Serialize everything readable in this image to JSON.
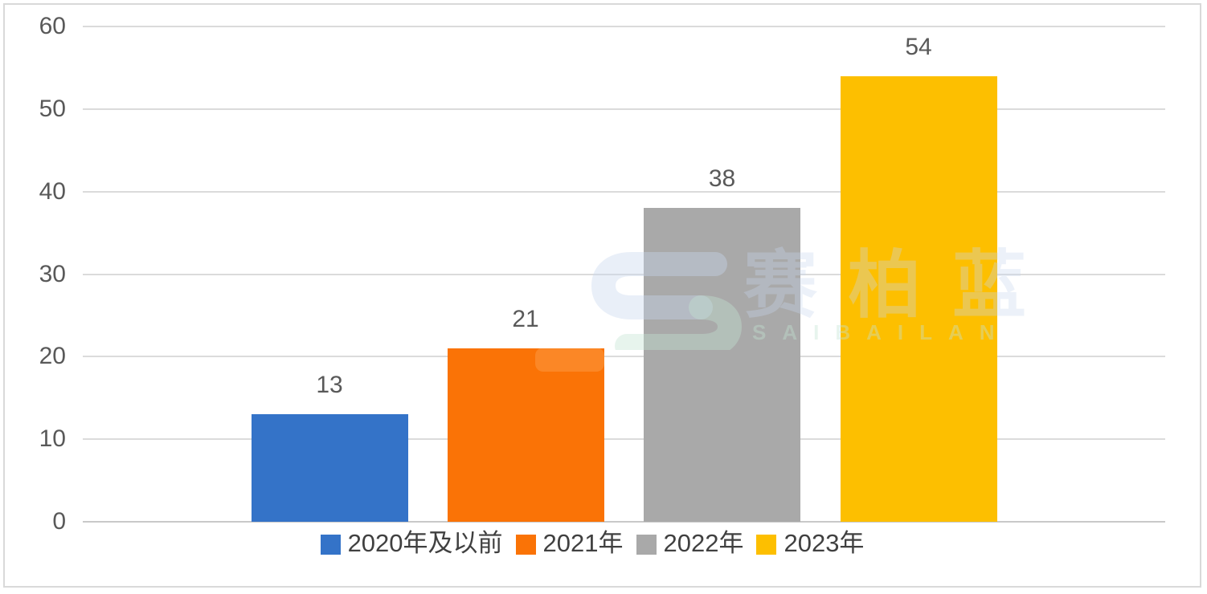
{
  "window": {
    "background": "#ffffff",
    "border_color": "#d9d9d9"
  },
  "chart_data": {
    "type": "bar",
    "title": "",
    "xlabel": "",
    "ylabel": "",
    "categories": [
      "2020年及以前",
      "2021年",
      "2022年",
      "2023年"
    ],
    "values": [
      13,
      21,
      38,
      54
    ],
    "data_labels": [
      "13",
      "21",
      "38",
      "54"
    ],
    "bar_colors": [
      "#3473C8",
      "#FA7306",
      "#A9A9A9",
      "#FDBF00"
    ],
    "ylim": [
      0,
      60
    ],
    "yticks": [
      0,
      10,
      20,
      30,
      40,
      50,
      60
    ],
    "grid": true,
    "gridline_color": "#dbdbdb",
    "axis_label_color": "#595959",
    "value_label_color": "#595959",
    "legend_position": "bottom",
    "legend_text_color": "#404040",
    "legend": [
      {
        "label": "2020年及以前",
        "color": "#3473C8"
      },
      {
        "label": "2021年",
        "color": "#FA7306"
      },
      {
        "label": "2022年",
        "color": "#A9A9A9"
      },
      {
        "label": "2023年",
        "color": "#FDBF00"
      }
    ]
  },
  "watermark": {
    "logo": "saibailan-logo",
    "text_cn": "赛柏蓝",
    "text_en": "SAIBAILAN"
  }
}
